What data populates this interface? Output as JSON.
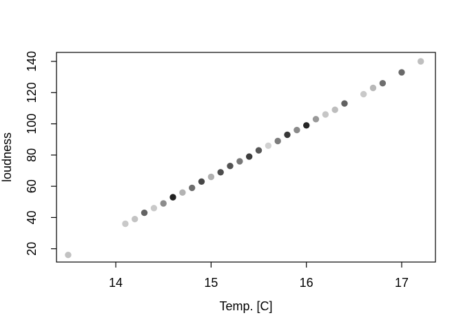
{
  "figure": {
    "background": "#ffffff",
    "axis_color": "#000000",
    "tick_label_color": "#000000"
  },
  "chart_data": {
    "type": "scatter",
    "title": "",
    "xlabel": "Temp. [C]",
    "ylabel": "loudness",
    "x_ticks": [
      14,
      15,
      16,
      17
    ],
    "y_ticks": [
      20,
      40,
      60,
      80,
      100,
      120,
      140
    ],
    "xlim": [
      13.378,
      17.354
    ],
    "ylim": [
      11.47,
      145.75
    ],
    "grid": false,
    "legend_position": "none",
    "marker": "filled-circle",
    "points": [
      {
        "x": 13.5,
        "y": 16,
        "color": "#c2c2c2"
      },
      {
        "x": 14.1,
        "y": 36,
        "color": "#c9c9c9"
      },
      {
        "x": 14.2,
        "y": 39,
        "color": "#c3c3c3"
      },
      {
        "x": 14.3,
        "y": 43,
        "color": "#636363"
      },
      {
        "x": 14.4,
        "y": 46,
        "color": "#c9c9c9"
      },
      {
        "x": 14.5,
        "y": 49,
        "color": "#8c8c8c"
      },
      {
        "x": 14.6,
        "y": 53,
        "color": "#212121"
      },
      {
        "x": 14.7,
        "y": 56,
        "color": "#b3b3b3"
      },
      {
        "x": 14.8,
        "y": 59,
        "color": "#6e6e6e"
      },
      {
        "x": 14.9,
        "y": 63,
        "color": "#474747"
      },
      {
        "x": 15.0,
        "y": 66,
        "color": "#b0b0b0"
      },
      {
        "x": 15.1,
        "y": 69,
        "color": "#4d4d4d"
      },
      {
        "x": 15.2,
        "y": 73,
        "color": "#525252"
      },
      {
        "x": 15.3,
        "y": 76,
        "color": "#787878"
      },
      {
        "x": 15.4,
        "y": 79,
        "color": "#3d3d3d"
      },
      {
        "x": 15.5,
        "y": 83,
        "color": "#575757"
      },
      {
        "x": 15.6,
        "y": 86,
        "color": "#d1d1d1"
      },
      {
        "x": 15.7,
        "y": 89,
        "color": "#7d7d7d"
      },
      {
        "x": 15.8,
        "y": 93,
        "color": "#383838"
      },
      {
        "x": 15.9,
        "y": 96,
        "color": "#8a8a8a"
      },
      {
        "x": 16.0,
        "y": 99,
        "color": "#262626"
      },
      {
        "x": 16.1,
        "y": 103,
        "color": "#999999"
      },
      {
        "x": 16.2,
        "y": 106,
        "color": "#c6c6c6"
      },
      {
        "x": 16.3,
        "y": 109,
        "color": "#bdbdbd"
      },
      {
        "x": 16.4,
        "y": 113,
        "color": "#616161"
      },
      {
        "x": 16.6,
        "y": 119,
        "color": "#c9c9c9"
      },
      {
        "x": 16.7,
        "y": 123,
        "color": "#b8b8b8"
      },
      {
        "x": 16.8,
        "y": 126,
        "color": "#6e6e6e"
      },
      {
        "x": 17.0,
        "y": 133,
        "color": "#696969"
      },
      {
        "x": 17.2,
        "y": 140,
        "color": "#bfbfbf"
      }
    ]
  }
}
